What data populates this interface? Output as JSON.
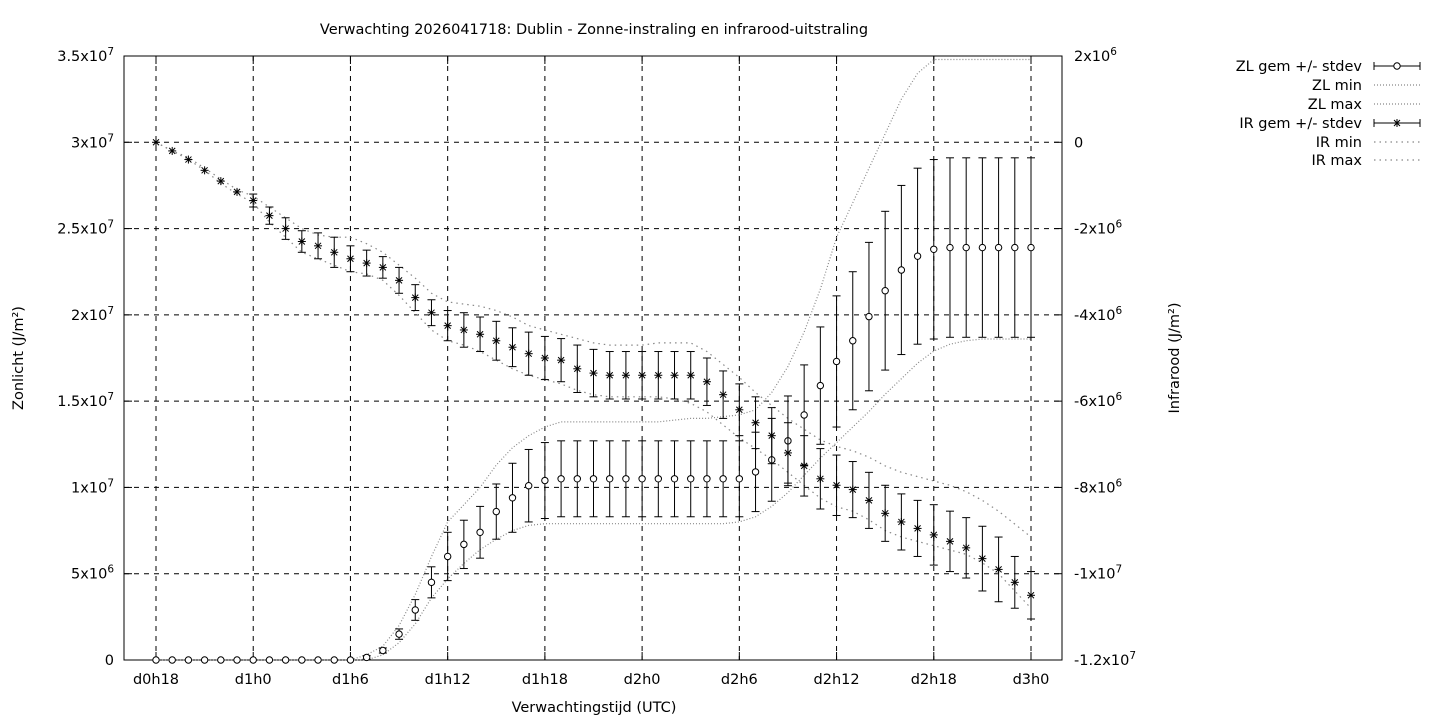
{
  "chart_data": {
    "type": "line",
    "title": "Verwachting 2026041718: Dublin - Zonne-instraling en infrarood-uitstraling",
    "xlabel": "Verwachtingstijd (UTC)",
    "ylabel_left": "Zonlicht (J/m²)",
    "ylabel_right": "Infrarood (J/m²)",
    "xlim": [
      -6,
      48
    ],
    "x_ticks": [
      {
        "x": -6,
        "label": "d0h18"
      },
      {
        "x": 0,
        "label": "d1h0"
      },
      {
        "x": 6,
        "label": "d1h6"
      },
      {
        "x": 12,
        "label": "d1h12"
      },
      {
        "x": 18,
        "label": "d1h18"
      },
      {
        "x": 24,
        "label": "d2h0"
      },
      {
        "x": 30,
        "label": "d2h6"
      },
      {
        "x": 36,
        "label": "d2h12"
      },
      {
        "x": 42,
        "label": "d2h18"
      },
      {
        "x": 48,
        "label": "d3h0"
      }
    ],
    "ylim_left": [
      0,
      35000000
    ],
    "y_ticks_left": [
      {
        "v": 0,
        "m": "0",
        "e": ""
      },
      {
        "v": 5000000,
        "m": "5x10",
        "e": "6"
      },
      {
        "v": 10000000,
        "m": "1x10",
        "e": "7"
      },
      {
        "v": 15000000,
        "m": "1.5x10",
        "e": "7"
      },
      {
        "v": 20000000,
        "m": "2x10",
        "e": "7"
      },
      {
        "v": 25000000,
        "m": "2.5x10",
        "e": "7"
      },
      {
        "v": 30000000,
        "m": "3x10",
        "e": "7"
      },
      {
        "v": 35000000,
        "m": "3.5x10",
        "e": "7"
      }
    ],
    "ylim_right": [
      -12000000,
      2000000
    ],
    "y_ticks_right": [
      {
        "v": 2000000,
        "m": "2x10",
        "e": "6"
      },
      {
        "v": 0,
        "m": "0",
        "e": ""
      },
      {
        "v": -2000000,
        "m": "-2x10",
        "e": "6"
      },
      {
        "v": -4000000,
        "m": "-4x10",
        "e": "6"
      },
      {
        "v": -6000000,
        "m": "-6x10",
        "e": "6"
      },
      {
        "v": -8000000,
        "m": "-8x10",
        "e": "6"
      },
      {
        "v": -10000000,
        "m": "-1x10",
        "e": "7"
      },
      {
        "v": -12000000,
        "m": "-1.2x10",
        "e": "7"
      }
    ],
    "grid": true,
    "legend_position": "outside-top-right",
    "legend": [
      "ZL gem +/- stdev",
      "ZL min",
      "ZL max",
      "IR gem +/- stdev",
      "IR min",
      "IR max"
    ],
    "x": [
      -6,
      -5,
      -4,
      -3,
      -2,
      -1,
      0,
      1,
      2,
      3,
      4,
      5,
      6,
      7,
      8,
      9,
      10,
      11,
      12,
      13,
      14,
      15,
      16,
      17,
      18,
      19,
      20,
      21,
      22,
      23,
      24,
      25,
      26,
      27,
      28,
      29,
      30,
      31,
      32,
      33,
      34,
      35,
      36,
      37,
      38,
      39,
      40,
      41,
      42,
      43,
      44,
      45,
      46,
      47,
      48
    ],
    "series": [
      {
        "name": "ZL gem +/- stdev",
        "axis": "left",
        "marker": "circle",
        "mean": [
          0,
          0,
          0,
          0,
          0,
          0,
          0,
          0,
          0,
          0,
          0,
          0,
          0,
          150000,
          550000,
          1500000,
          2900000,
          4500000,
          6000000,
          6700000,
          7400000,
          8600000,
          9400000,
          10100000,
          10400000,
          10500000,
          10500000,
          10500000,
          10500000,
          10500000,
          10500000,
          10500000,
          10500000,
          10500000,
          10500000,
          10500000,
          10500000,
          10900000,
          11600000,
          12700000,
          14200000,
          15900000,
          17300000,
          18500000,
          19900000,
          21400000,
          22600000,
          23400000,
          23800000,
          23900000,
          23900000,
          23900000,
          23900000,
          23900000,
          23900000
        ],
        "stdev": [
          0,
          0,
          0,
          0,
          0,
          0,
          0,
          0,
          0,
          0,
          0,
          0,
          0,
          100000,
          150000,
          300000,
          600000,
          900000,
          1400000,
          1400000,
          1500000,
          1600000,
          2000000,
          2100000,
          2200000,
          2200000,
          2200000,
          2200000,
          2200000,
          2200000,
          2200000,
          2200000,
          2200000,
          2200000,
          2200000,
          2200000,
          2200000,
          2300000,
          2400000,
          2600000,
          2900000,
          3400000,
          3800000,
          4000000,
          4300000,
          4600000,
          4900000,
          5100000,
          5200000,
          5200000,
          5200000,
          5200000,
          5200000,
          5200000,
          5200000
        ]
      },
      {
        "name": "ZL min",
        "axis": "left",
        "style": "dotted",
        "values": [
          0,
          0,
          0,
          0,
          0,
          0,
          0,
          0,
          0,
          0,
          0,
          0,
          0,
          0,
          300000,
          1000000,
          2100000,
          3600000,
          4700000,
          5600000,
          6400000,
          7000000,
          7500000,
          7800000,
          7900000,
          7900000,
          7900000,
          7900000,
          7900000,
          7900000,
          7900000,
          7900000,
          7900000,
          7900000,
          7900000,
          7900000,
          8000000,
          8300000,
          8900000,
          9700000,
          10700000,
          11700000,
          12600000,
          13500000,
          14400000,
          15400000,
          16300000,
          17200000,
          17900000,
          18300000,
          18500000,
          18600000,
          18600000,
          18600000,
          18600000
        ]
      },
      {
        "name": "ZL max",
        "axis": "left",
        "style": "dotted",
        "values": [
          0,
          0,
          0,
          0,
          0,
          0,
          0,
          0,
          0,
          0,
          0,
          0,
          0,
          300000,
          800000,
          2000000,
          3800000,
          6000000,
          8000000,
          9000000,
          10000000,
          11300000,
          12300000,
          13000000,
          13500000,
          13800000,
          13800000,
          13800000,
          13800000,
          13800000,
          13800000,
          13800000,
          13900000,
          14000000,
          14000000,
          14100000,
          14200000,
          14500000,
          15500000,
          17000000,
          19000000,
          21500000,
          24500000,
          26500000,
          28500000,
          30500000,
          32500000,
          34000000,
          34800000,
          34800000,
          34800000,
          34800000,
          34800000,
          34800000,
          34800000
        ]
      },
      {
        "name": "IR gem +/- stdev",
        "axis": "right",
        "marker": "star",
        "mean": [
          0,
          -200000,
          -400000,
          -650000,
          -900000,
          -1150000,
          -1350000,
          -1700000,
          -2000000,
          -2300000,
          -2400000,
          -2550000,
          -2700000,
          -2800000,
          -2900000,
          -3200000,
          -3600000,
          -3950000,
          -4250000,
          -4350000,
          -4450000,
          -4600000,
          -4750000,
          -4900000,
          -5000000,
          -5050000,
          -5250000,
          -5350000,
          -5400000,
          -5400000,
          -5400000,
          -5400000,
          -5400000,
          -5400000,
          -5550000,
          -5850000,
          -6200000,
          -6500000,
          -6800000,
          -7200000,
          -7500000,
          -7800000,
          -7950000,
          -8050000,
          -8300000,
          -8600000,
          -8800000,
          -8950000,
          -9100000,
          -9250000,
          -9400000,
          -9650000,
          -9900000,
          -10200000,
          -10500000
        ],
        "stdev": [
          0,
          0,
          0,
          0,
          0,
          0,
          150000,
          200000,
          250000,
          250000,
          300000,
          350000,
          300000,
          300000,
          250000,
          300000,
          300000,
          300000,
          350000,
          400000,
          400000,
          450000,
          450000,
          500000,
          500000,
          500000,
          550000,
          550000,
          550000,
          550000,
          550000,
          550000,
          550000,
          550000,
          550000,
          550000,
          600000,
          600000,
          650000,
          700000,
          700000,
          700000,
          700000,
          650000,
          650000,
          650000,
          650000,
          650000,
          700000,
          700000,
          700000,
          750000,
          750000,
          600000,
          550000
        ]
      },
      {
        "name": "IR min",
        "axis": "right",
        "style": "dotted",
        "values": [
          0,
          -200000,
          -400000,
          -650000,
          -950000,
          -1200000,
          -1400000,
          -1850000,
          -2200000,
          -2550000,
          -2700000,
          -2850000,
          -3000000,
          -3050000,
          -3200000,
          -3550000,
          -3950000,
          -4350000,
          -4600000,
          -4700000,
          -4850000,
          -5050000,
          -5250000,
          -5400000,
          -5500000,
          -5600000,
          -5750000,
          -5850000,
          -5900000,
          -5900000,
          -5900000,
          -5900000,
          -5950000,
          -6050000,
          -6250000,
          -6550000,
          -6850000,
          -7100000,
          -7350000,
          -7650000,
          -7950000,
          -8250000,
          -8450000,
          -8550000,
          -8750000,
          -9000000,
          -9150000,
          -9250000,
          -9350000,
          -9450000,
          -9550000,
          -9750000,
          -10000000,
          -10400000,
          -10800000
        ]
      },
      {
        "name": "IR max",
        "axis": "right",
        "style": "dotted",
        "values": [
          0,
          -200000,
          -350000,
          -600000,
          -850000,
          -1100000,
          -1250000,
          -1500000,
          -1750000,
          -2000000,
          -2150000,
          -2200000,
          -2200000,
          -2350000,
          -2550000,
          -2850000,
          -3150000,
          -3500000,
          -3700000,
          -3750000,
          -3800000,
          -3900000,
          -4050000,
          -4250000,
          -4350000,
          -4450000,
          -4550000,
          -4650000,
          -4700000,
          -4700000,
          -4700000,
          -4650000,
          -4650000,
          -4650000,
          -4850000,
          -5150000,
          -5450000,
          -5800000,
          -6100000,
          -6400000,
          -6650000,
          -6900000,
          -7050000,
          -7150000,
          -7300000,
          -7500000,
          -7650000,
          -7750000,
          -7850000,
          -7950000,
          -8100000,
          -8300000,
          -8550000,
          -8850000,
          -9150000
        ]
      }
    ]
  }
}
